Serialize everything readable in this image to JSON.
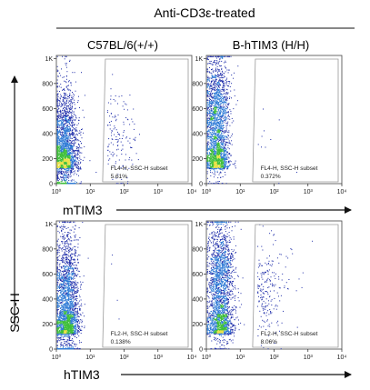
{
  "figure": {
    "title": "Anti-CD3ε-treated",
    "columns": [
      "C57BL/6(+/+)",
      "B-hTIM3 (H/H)"
    ],
    "row_xlabels": [
      "mTIM3",
      "hTIM3"
    ],
    "ylabel": "SSC-H"
  },
  "colors": {
    "point_low": "#1b2aa8",
    "point_mid": "#2e7bd6",
    "point_high": "#3fbf3a",
    "point_peak": "#e9e24a",
    "gate": "#9a9a9a",
    "frame": "#444444"
  },
  "chart_data": [
    {
      "type": "scatter",
      "panel": "mTIM3 / C57BL/6(+/+)",
      "xscale": "log",
      "xlim": [
        1,
        10000
      ],
      "xticks": [
        "10⁰",
        "10¹",
        "10²",
        "10³",
        "10⁴"
      ],
      "ylim": [
        0,
        1024
      ],
      "yticks": [
        "0",
        "200",
        "400",
        "600",
        "800",
        "1K"
      ],
      "gate_x_min": 28,
      "gate_label": "FL4-H, SSC-H subset",
      "gate_percent": "5.61%",
      "main_population": {
        "x_log_center": 0.25,
        "x_log_spread": 0.32,
        "y_center": 330,
        "y_spread": 230
      },
      "positive_population": {
        "x_log_center": 1.6,
        "x_log_spread": 0.45,
        "y_center": 360,
        "y_spread": 190
      },
      "positive_fraction": 0.0561
    },
    {
      "type": "scatter",
      "panel": "mTIM3 / B-hTIM3 (H/H)",
      "xscale": "log",
      "xlim": [
        1,
        10000
      ],
      "xticks": [
        "10⁰",
        "10¹",
        "10²",
        "10³",
        "10⁴"
      ],
      "ylim": [
        0,
        1024
      ],
      "yticks": [
        "0",
        "200",
        "400",
        "600",
        "800",
        "1K"
      ],
      "gate_x_min": 28,
      "gate_label": "FL4-H, SSC-H subset",
      "gate_percent": "0.372%",
      "main_population": {
        "x_log_center": 0.3,
        "x_log_spread": 0.3,
        "y_center": 560,
        "y_spread": 230
      },
      "positive_population": {
        "x_log_center": 1.8,
        "x_log_spread": 0.5,
        "y_center": 400,
        "y_spread": 200
      },
      "positive_fraction": 0.00372
    },
    {
      "type": "scatter",
      "panel": "hTIM3 / C57BL/6(+/+)",
      "xscale": "log",
      "xlim": [
        1,
        10000
      ],
      "xticks": [
        "10⁰",
        "10¹",
        "10²",
        "10³",
        "10⁴"
      ],
      "ylim": [
        0,
        1024
      ],
      "yticks": [
        "0",
        "200",
        "400",
        "600",
        "800",
        "1K"
      ],
      "gate_x_min": 28,
      "gate_label": "FL2-H, SSC-H subset",
      "gate_percent": "0.138%",
      "main_population": {
        "x_log_center": 0.3,
        "x_log_spread": 0.3,
        "y_center": 440,
        "y_spread": 260
      },
      "positive_population": {
        "x_log_center": 1.8,
        "x_log_spread": 0.5,
        "y_center": 400,
        "y_spread": 200
      },
      "positive_fraction": 0.00138
    },
    {
      "type": "scatter",
      "panel": "hTIM3 / B-hTIM3 (H/H)",
      "xscale": "log",
      "xlim": [
        1,
        10000
      ],
      "xticks": [
        "10⁰",
        "10¹",
        "10²",
        "10³",
        "10⁴"
      ],
      "ylim": [
        0,
        1024
      ],
      "yticks": [
        "0",
        "200",
        "400",
        "600",
        "800",
        "1K"
      ],
      "gate_x_min": 28,
      "gate_label": "FL2-H, SSC-H subset",
      "gate_percent": "8.06%",
      "main_population": {
        "x_log_center": 0.4,
        "x_log_spread": 0.32,
        "y_center": 560,
        "y_spread": 250
      },
      "positive_population": {
        "x_log_center": 1.7,
        "x_log_spread": 0.5,
        "y_center": 480,
        "y_spread": 220
      },
      "positive_fraction": 0.0806
    }
  ]
}
